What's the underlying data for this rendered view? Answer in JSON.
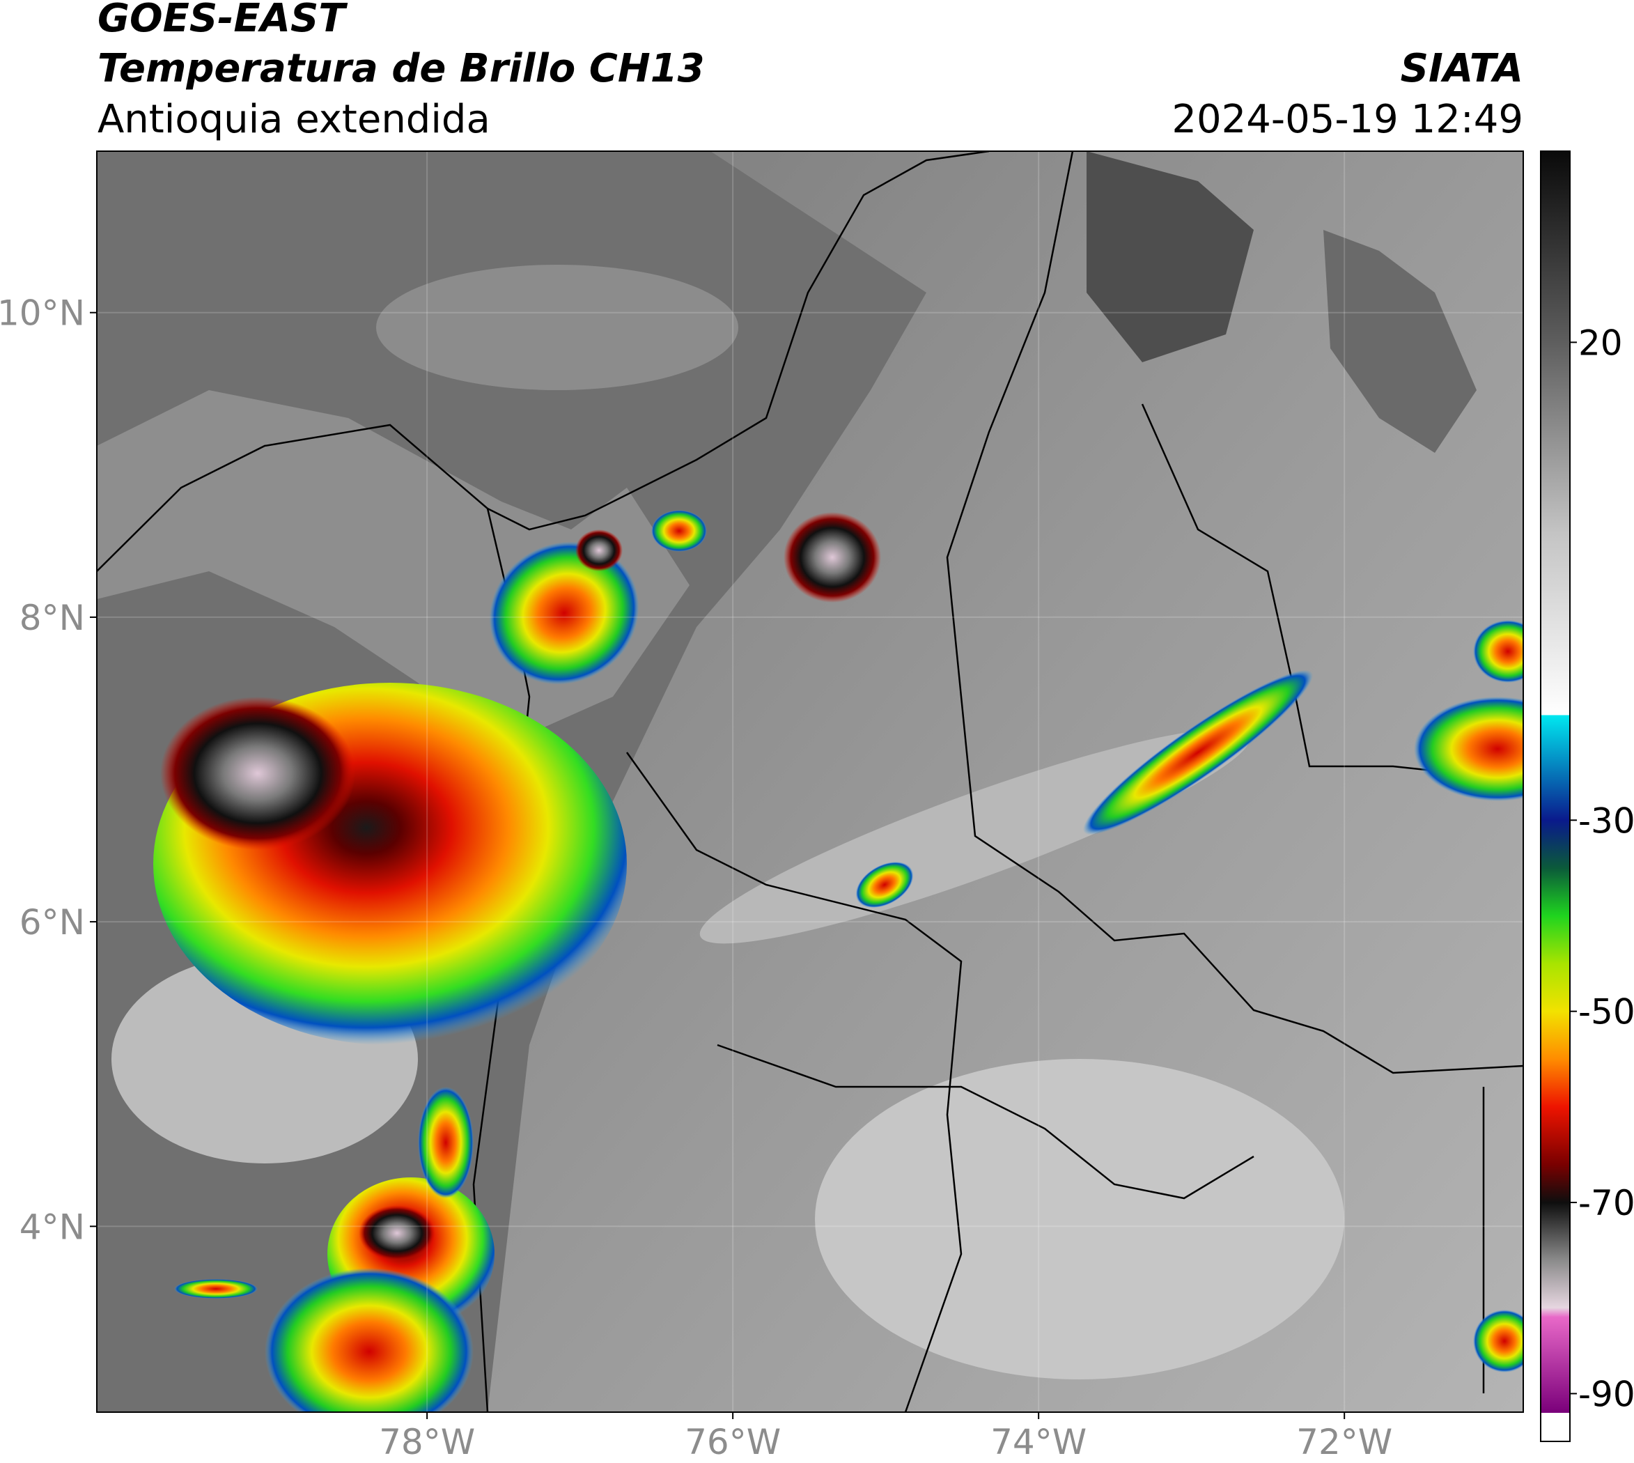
{
  "header": {
    "title": "GOES-EAST",
    "subtitle": "Temperatura de Brillo CH13",
    "region": "Antioquia extendida",
    "source": "SIATA",
    "datetime": "2024-05-19 12:49"
  },
  "map": {
    "lonlim": [
      -80.16,
      -70.83
    ],
    "latlim": [
      2.78,
      11.06
    ],
    "lon_ticks": [
      {
        "value": -78,
        "label": "78°W"
      },
      {
        "value": -76,
        "label": "76°W"
      },
      {
        "value": -74,
        "label": "74°W"
      },
      {
        "value": -72,
        "label": "72°W"
      }
    ],
    "lat_ticks": [
      {
        "value": 10,
        "label": "10°N"
      },
      {
        "value": 8,
        "label": "8°N"
      },
      {
        "value": 6,
        "label": "6°N"
      },
      {
        "value": 4,
        "label": "4°N"
      }
    ],
    "grid": true
  },
  "colorbar": {
    "lim": [
      -95,
      40
    ],
    "ticks": [
      20,
      -30,
      -50,
      -70,
      -90
    ],
    "stops": [
      {
        "value": 40,
        "color": "#0a0a0a"
      },
      {
        "value": 20,
        "color": "#5e5e5e"
      },
      {
        "value": 0,
        "color": "#c4c4c4"
      },
      {
        "value": -19,
        "color": "#ffffff"
      },
      {
        "value": -19,
        "color": "#00e8f0"
      },
      {
        "value": -30,
        "color": "#0a1a8c"
      },
      {
        "value": -35,
        "color": "#0b5a3a"
      },
      {
        "value": -40,
        "color": "#1fd41f"
      },
      {
        "value": -45,
        "color": "#a8e400"
      },
      {
        "value": -50,
        "color": "#f2e200"
      },
      {
        "value": -55,
        "color": "#ff8c00"
      },
      {
        "value": -60,
        "color": "#ee1400"
      },
      {
        "value": -66,
        "color": "#7a0000"
      },
      {
        "value": -70,
        "color": "#0e0e0e"
      },
      {
        "value": -76,
        "color": "#8a8a8a"
      },
      {
        "value": -81,
        "color": "#e6d6e0"
      },
      {
        "value": -82,
        "color": "#e868c8"
      },
      {
        "value": -92,
        "color": "#7a007a"
      },
      {
        "value": -92,
        "color": "#ffffff"
      }
    ]
  }
}
